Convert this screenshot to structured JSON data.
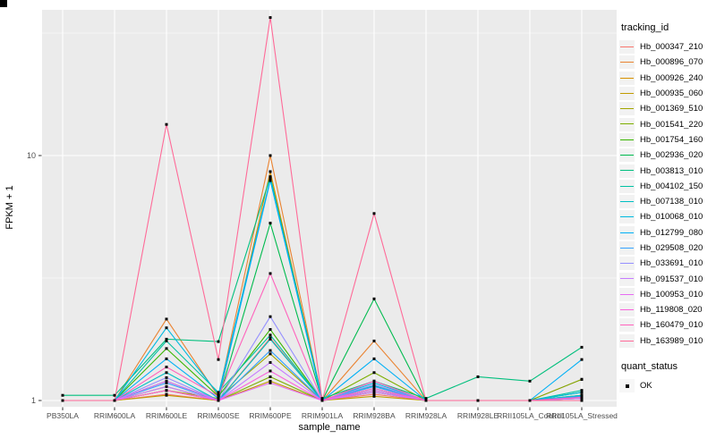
{
  "figure": {
    "background": "#FFFFFF",
    "panel_background": "#EBEBEB",
    "grid_color": "#FFFFFF",
    "tick_mark_color": "#333333",
    "tick_label_color": "#4D4D4D",
    "point_color": "#000000"
  },
  "chart_data": {
    "type": "line",
    "title": "",
    "xlabel": "sample_name",
    "ylabel": "FPKM + 1",
    "y_scale": "log10",
    "ylim": [
      0.97,
      39.5
    ],
    "grid": true,
    "legend_position": "right",
    "y_ticks": [
      {
        "value": 1,
        "label": "1"
      },
      {
        "value": 10,
        "label": "10"
      }
    ],
    "y_minor_ticks": [
      3.1623,
      31.6228
    ],
    "categories": [
      "PB350LA",
      "RRIM600LA",
      "RRIM600LE",
      "RRIM600SE",
      "RRIM600PE",
      "RRIM901LA",
      "RRIM928BA",
      "RRIM928LA",
      "RRIM928LE",
      "RRII105LA_Control",
      "RRII105LA_Stressed"
    ],
    "point_shape": "filled-square",
    "series": [
      {
        "name": "Hb_000347_210",
        "color": "#F8766D",
        "values": [
          1.0,
          1.0,
          1.06,
          1.0,
          1.8,
          1.0,
          1.06,
          1.0,
          1.0,
          1.0,
          1.22
        ]
      },
      {
        "name": "Hb_000896_070",
        "color": "#EA8331",
        "values": [
          1.0,
          1.0,
          2.15,
          1.04,
          10.0,
          1.0,
          1.75,
          1.0,
          1.0,
          1.0,
          1.04
        ]
      },
      {
        "name": "Hb_000926_240",
        "color": "#D89000",
        "values": [
          1.0,
          1.0,
          1.1,
          1.0,
          8.6,
          1.0,
          1.1,
          1.0,
          1.0,
          1.0,
          1.02
        ]
      },
      {
        "name": "Hb_000935_060",
        "color": "#C09B00",
        "values": [
          1.0,
          1.0,
          1.05,
          1.0,
          1.2,
          1.0,
          1.04,
          1.0,
          1.0,
          1.0,
          1.0
        ]
      },
      {
        "name": "Hb_001369_510",
        "color": "#A3A500",
        "values": [
          1.0,
          1.0,
          1.1,
          1.02,
          1.55,
          1.0,
          1.08,
          1.0,
          1.0,
          1.0,
          1.02
        ]
      },
      {
        "name": "Hb_001541_220",
        "color": "#7CAE00",
        "values": [
          1.0,
          1.0,
          1.14,
          1.0,
          1.25,
          1.0,
          1.3,
          1.0,
          1.0,
          1.0,
          1.22
        ]
      },
      {
        "name": "Hb_001754_160",
        "color": "#39B600",
        "values": [
          1.0,
          1.0,
          1.63,
          1.04,
          1.95,
          1.0,
          1.12,
          1.0,
          1.0,
          1.0,
          1.05
        ]
      },
      {
        "name": "Hb_002936_020",
        "color": "#00BB4E",
        "values": [
          1.0,
          1.0,
          1.2,
          1.0,
          5.3,
          1.0,
          2.6,
          1.0,
          1.0,
          1.0,
          1.08
        ]
      },
      {
        "name": "Hb_003813_010",
        "color": "#00BF7D",
        "values": [
          1.05,
          1.05,
          1.78,
          1.74,
          8.2,
          1.02,
          1.2,
          1.02,
          1.25,
          1.2,
          1.65
        ]
      },
      {
        "name": "Hb_004102_150",
        "color": "#00C1A3",
        "values": [
          1.0,
          1.0,
          1.75,
          1.08,
          1.85,
          1.0,
          1.15,
          1.0,
          1.0,
          1.0,
          1.1
        ]
      },
      {
        "name": "Hb_007138_010",
        "color": "#00BFC4",
        "values": [
          1.0,
          1.0,
          1.3,
          1.0,
          1.78,
          1.0,
          1.1,
          1.0,
          1.0,
          1.0,
          1.05
        ]
      },
      {
        "name": "Hb_010068_010",
        "color": "#00BAE0",
        "values": [
          1.0,
          1.0,
          1.98,
          1.06,
          8.0,
          1.0,
          1.18,
          1.0,
          1.0,
          1.0,
          1.08
        ]
      },
      {
        "name": "Hb_012799_080",
        "color": "#00B0F6",
        "values": [
          1.0,
          1.0,
          1.48,
          1.02,
          7.9,
          1.0,
          1.48,
          1.0,
          1.0,
          1.0,
          1.47
        ]
      },
      {
        "name": "Hb_029508_020",
        "color": "#35A2FF",
        "values": [
          1.0,
          1.0,
          1.18,
          1.0,
          1.6,
          1.0,
          1.14,
          1.0,
          1.0,
          1.0,
          1.04
        ]
      },
      {
        "name": "Hb_033691_010",
        "color": "#9590FF",
        "values": [
          1.0,
          1.0,
          1.24,
          1.0,
          2.2,
          1.0,
          1.16,
          1.0,
          1.0,
          1.0,
          1.02
        ]
      },
      {
        "name": "Hb_091537_010",
        "color": "#C77CFF",
        "values": [
          1.0,
          1.0,
          1.14,
          1.0,
          1.43,
          1.0,
          1.08,
          1.0,
          1.0,
          1.0,
          1.02
        ]
      },
      {
        "name": "Hb_100953_010",
        "color": "#E76BF3",
        "values": [
          1.0,
          1.0,
          1.2,
          1.0,
          1.18,
          1.0,
          1.1,
          1.0,
          1.0,
          1.0,
          1.0
        ]
      },
      {
        "name": "Hb_119808_020",
        "color": "#FA62DB",
        "values": [
          1.0,
          1.0,
          1.1,
          1.0,
          1.32,
          1.0,
          1.12,
          1.0,
          1.0,
          1.0,
          1.0
        ]
      },
      {
        "name": "Hb_160479_010",
        "color": "#FF62BC",
        "values": [
          1.0,
          1.0,
          1.37,
          1.04,
          3.3,
          1.0,
          1.2,
          1.0,
          1.0,
          1.0,
          1.03
        ]
      },
      {
        "name": "Hb_163989_010",
        "color": "#FF6A98",
        "values": [
          1.0,
          1.0,
          13.4,
          1.47,
          36.6,
          1.0,
          5.8,
          1.0,
          1.0,
          1.0,
          1.0
        ]
      }
    ]
  },
  "legend": {
    "color_title": "tracking_id",
    "shape_title": "quant_status",
    "shape_items": [
      {
        "label": "OK"
      }
    ]
  }
}
